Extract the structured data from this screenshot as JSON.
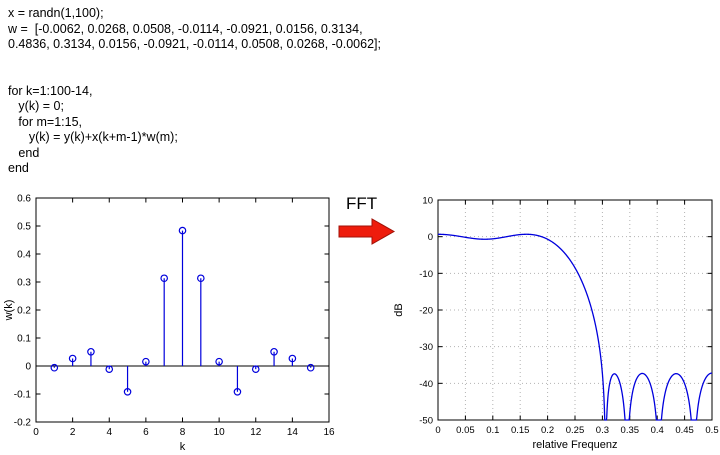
{
  "code": {
    "lines": [
      "x = randn(1,100);",
      "w =  [-0.0062, 0.0268, 0.0508, -0.0114, -0.0921, 0.0156, 0.3134,",
      "0.4836, 0.3134, 0.0156, -0.0921, -0.0114, 0.0508, 0.0268, -0.0062];",
      "",
      "",
      "for k=1:100-14,",
      "   y(k) = 0;",
      "   for m=1:15,",
      "      y(k) = y(k)+x(k+m-1)*w(m);",
      "   end",
      "end"
    ]
  },
  "fft": {
    "label": "FFT"
  },
  "colors": {
    "stem": "#0000dd",
    "curve": "#0000dd",
    "arrow": "#ee1c0c",
    "arrow_edge": "#a01208",
    "grid": "#b3b3b3",
    "axis": "#000000"
  },
  "chart_data": [
    {
      "type": "scatter",
      "style": "stem",
      "x": [
        1,
        2,
        3,
        4,
        5,
        6,
        7,
        8,
        9,
        10,
        11,
        12,
        13,
        14,
        15
      ],
      "values": [
        -0.0062,
        0.0268,
        0.0508,
        -0.0114,
        -0.0921,
        0.0156,
        0.3134,
        0.4836,
        0.3134,
        0.0156,
        -0.0921,
        -0.0114,
        0.0508,
        0.0268,
        -0.0062
      ],
      "title": "",
      "xlabel": "k",
      "ylabel": "w(k)",
      "xlim": [
        0,
        16
      ],
      "ylim": [
        -0.2,
        0.6
      ],
      "xticks": [
        0,
        2,
        4,
        6,
        8,
        10,
        12,
        14,
        16
      ],
      "xtick_labels": [
        "0",
        "2",
        "4",
        "6",
        "8",
        "10",
        "12",
        "14",
        "16"
      ],
      "yticks": [
        -0.2,
        -0.1,
        0,
        0.1,
        0.2,
        0.3,
        0.4,
        0.5,
        0.6
      ],
      "ytick_labels": [
        "-0.2",
        "-0.1",
        "0",
        "0.1",
        "0.2",
        "0.3",
        "0.4",
        "0.5",
        "0.6"
      ],
      "grid": false
    },
    {
      "type": "line",
      "title": "",
      "xlabel": "relative Frequenz",
      "ylabel": "dB",
      "xlim": [
        0,
        0.5
      ],
      "ylim": [
        -50,
        10
      ],
      "xticks": [
        0,
        0.05,
        0.1,
        0.15,
        0.2,
        0.25,
        0.3,
        0.35,
        0.4,
        0.45,
        0.5
      ],
      "xtick_labels": [
        "0",
        "0.05",
        "0.1",
        "0.15",
        "0.2",
        "0.25",
        "0.3",
        "0.35",
        "0.4",
        "0.45",
        "0.5"
      ],
      "yticks": [
        10,
        0,
        -10,
        -20,
        -30,
        -40,
        -50
      ],
      "ytick_labels": [
        "10",
        "0",
        "-10",
        "-20",
        "-30",
        "-40",
        "-50"
      ],
      "grid": true,
      "derived_from": "20*log10(|FFT of coefficients w|), clipped at -50 dB",
      "coefficients": [
        -0.0062,
        0.0268,
        0.0508,
        -0.0114,
        -0.0921,
        0.0156,
        0.3134,
        0.4836,
        0.3134,
        0.0156,
        -0.0921,
        -0.0114,
        0.0508,
        0.0268,
        -0.0062
      ],
      "samples": {
        "x": [
          0,
          0.05,
          0.1,
          0.15,
          0.2,
          0.25,
          0.3,
          0.35,
          0.4,
          0.45,
          0.5
        ],
        "dB": [
          0.6,
          -0.2,
          -0.6,
          0.6,
          -0.7,
          -8.5,
          -37,
          -48,
          -50,
          -40,
          -37
        ]
      }
    }
  ]
}
